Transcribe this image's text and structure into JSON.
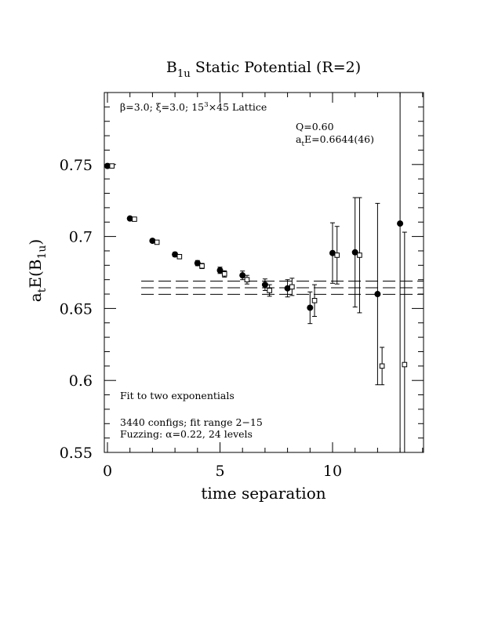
{
  "chart_data": {
    "type": "scatter",
    "title": {
      "main": "B",
      "sub": "1u",
      "rest": " Static Potential (R=2)"
    },
    "xlabel": "time separation",
    "ylabel": {
      "main": "a",
      "sub1": "t",
      "mid": "E(B",
      "sub2": "1u",
      "end": ")"
    },
    "xlim": [
      0,
      14
    ],
    "ylim": [
      0.55,
      0.8
    ],
    "x_major_ticks": [
      0,
      5,
      10
    ],
    "x_major_tick_labels": [
      "0",
      "5",
      "10"
    ],
    "y_major_ticks": [
      0.55,
      0.6,
      0.65,
      0.7,
      0.75
    ],
    "y_major_tick_labels": [
      "0.55",
      "0.6",
      "0.65",
      "0.7",
      "0.75"
    ],
    "annotations": {
      "lattice": {
        "beta": "β=3.0; ",
        "xi": "ξ=3.0; ",
        "size": "15",
        "sup": "3",
        "rest": "×45 Lattice"
      },
      "q": "Q=0.60",
      "fit_energy": {
        "pre": "a",
        "sub": "t",
        "post": "E=0.6644(46)"
      },
      "fit_type": "Fit to two exponentials",
      "configs": "3440 configs; fit range 2−15",
      "fuzzing": "Fuzzing: α=0.22, 24 levels"
    },
    "fit": {
      "value": 0.6644,
      "error": 0.0046,
      "x_range": [
        1.5,
        14
      ]
    },
    "series": [
      {
        "marker": "filled-circle",
        "points": [
          {
            "x": 0,
            "y": 0.749,
            "err": 0.001
          },
          {
            "x": 1,
            "y": 0.7125,
            "err": 0.001
          },
          {
            "x": 2,
            "y": 0.697,
            "err": 0.0012
          },
          {
            "x": 3,
            "y": 0.6875,
            "err": 0.0015
          },
          {
            "x": 4,
            "y": 0.6815,
            "err": 0.0018
          },
          {
            "x": 5,
            "y": 0.6765,
            "err": 0.0022
          },
          {
            "x": 6,
            "y": 0.673,
            "err": 0.003
          },
          {
            "x": 7,
            "y": 0.6665,
            "err": 0.004
          },
          {
            "x": 8,
            "y": 0.664,
            "err": 0.006
          },
          {
            "x": 9,
            "y": 0.6505,
            "err": 0.011
          },
          {
            "x": 10,
            "y": 0.6885,
            "err": 0.021
          },
          {
            "x": 11,
            "y": 0.689,
            "err": 0.038
          },
          {
            "x": 12,
            "y": 0.66,
            "err": 0.063
          },
          {
            "x": 13,
            "y": 0.709,
            "err": 0.16
          }
        ]
      },
      {
        "marker": "open-square",
        "points": [
          {
            "x": 0.2,
            "y": 0.749,
            "err": 0.001
          },
          {
            "x": 1.2,
            "y": 0.712,
            "err": 0.001
          },
          {
            "x": 2.2,
            "y": 0.696,
            "err": 0.0012
          },
          {
            "x": 3.2,
            "y": 0.686,
            "err": 0.0015
          },
          {
            "x": 4.2,
            "y": 0.6795,
            "err": 0.0018
          },
          {
            "x": 5.2,
            "y": 0.674,
            "err": 0.0022
          },
          {
            "x": 6.2,
            "y": 0.67,
            "err": 0.003
          },
          {
            "x": 7.2,
            "y": 0.6625,
            "err": 0.004
          },
          {
            "x": 8.2,
            "y": 0.665,
            "err": 0.006
          },
          {
            "x": 9.2,
            "y": 0.6555,
            "err": 0.011
          },
          {
            "x": 10.2,
            "y": 0.687,
            "err": 0.02
          },
          {
            "x": 11.2,
            "y": 0.687,
            "err": 0.04
          },
          {
            "x": 12.2,
            "y": 0.61,
            "err": 0.013
          },
          {
            "x": 13.2,
            "y": 0.611,
            "err": 0.092
          }
        ]
      }
    ]
  }
}
